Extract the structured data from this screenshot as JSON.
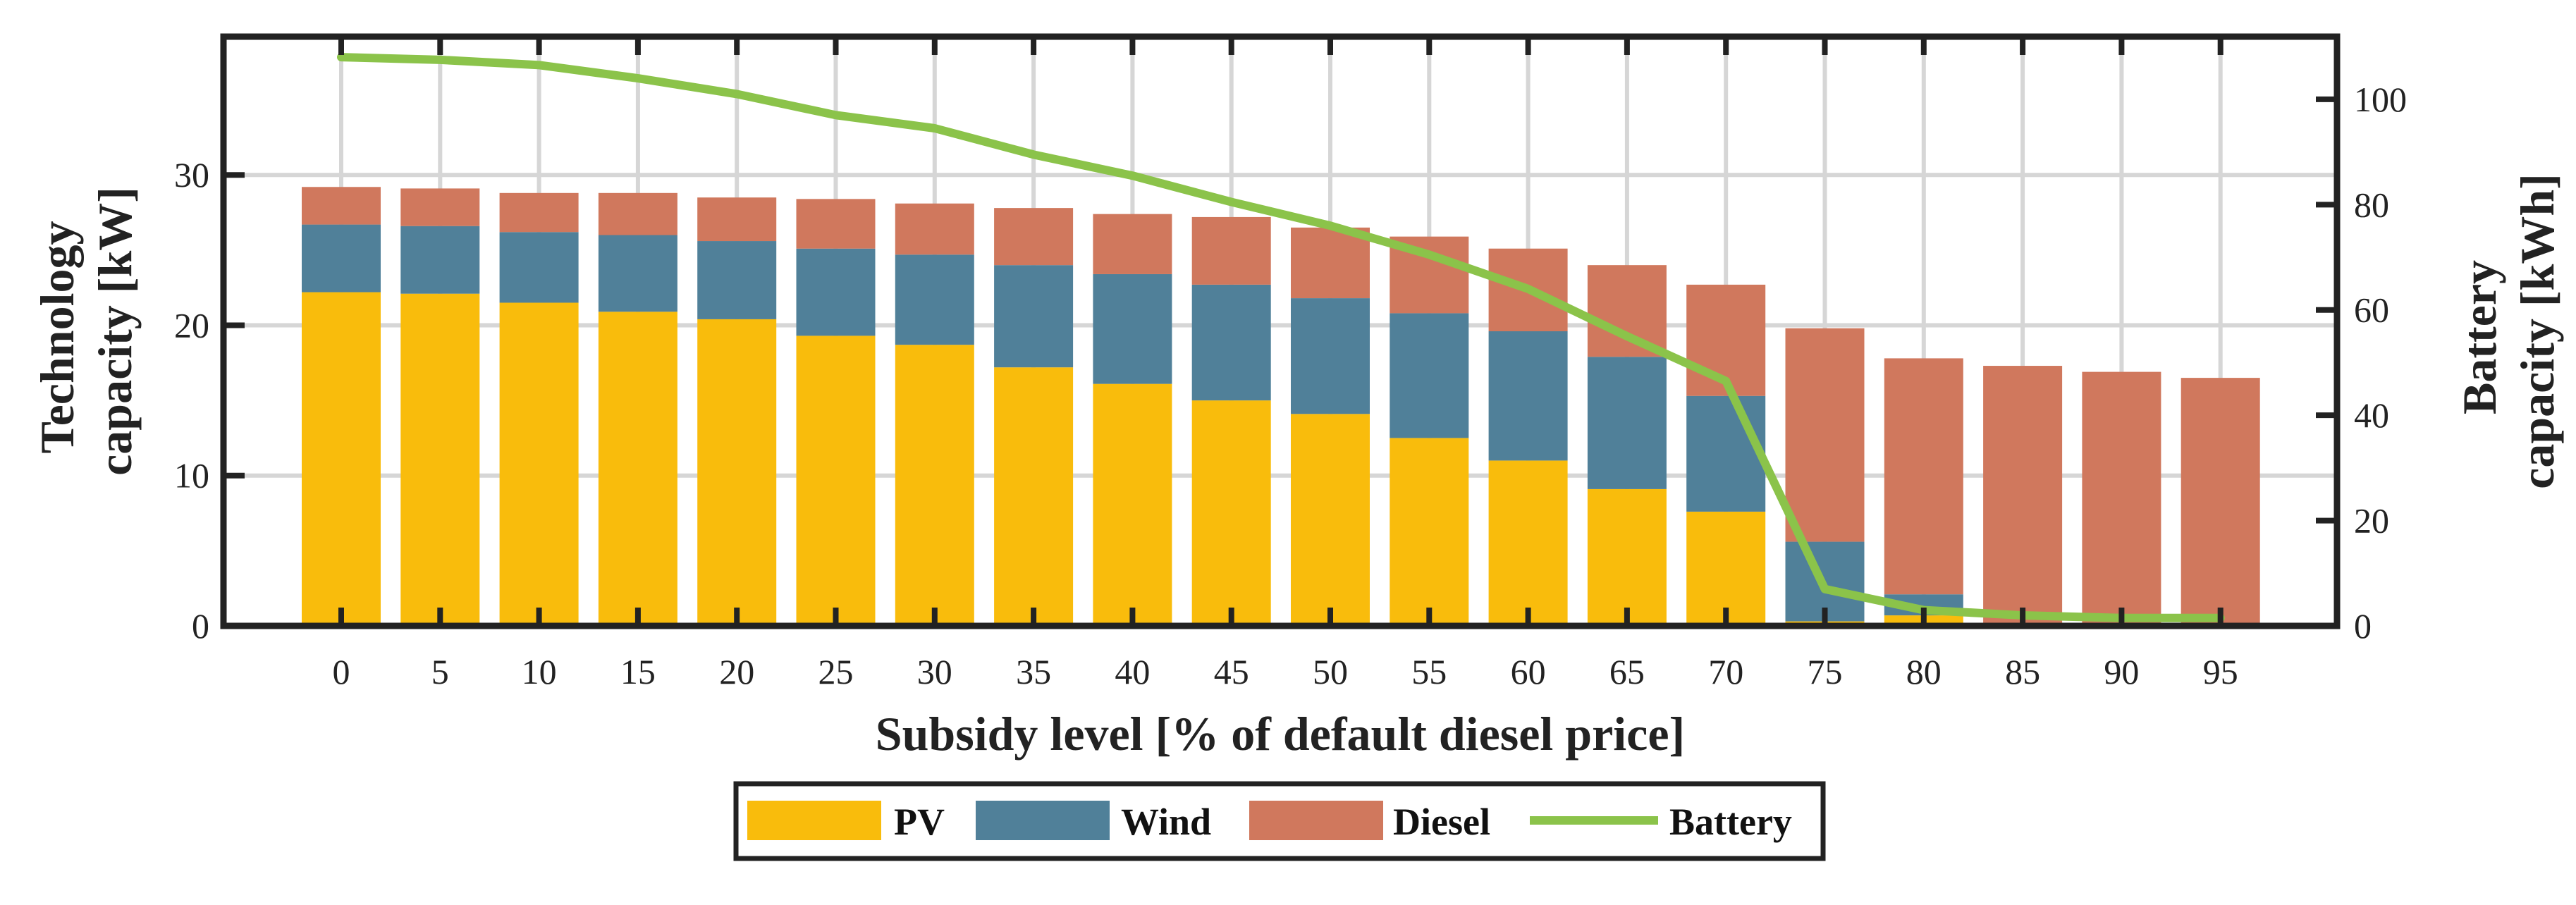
{
  "chart_data": {
    "type": "bar",
    "stacked": true,
    "categories": [
      "0",
      "5",
      "10",
      "15",
      "20",
      "25",
      "30",
      "35",
      "40",
      "45",
      "50",
      "55",
      "60",
      "65",
      "70",
      "75",
      "80",
      "85",
      "90",
      "95"
    ],
    "series": [
      {
        "name": "PV",
        "axis": "left",
        "color": "#F9BC0C",
        "values": [
          22.2,
          22.1,
          21.5,
          20.9,
          20.4,
          19.3,
          18.7,
          17.2,
          16.1,
          15.0,
          14.1,
          12.5,
          11.0,
          9.1,
          7.6,
          0.3,
          0.7,
          0,
          0,
          0
        ]
      },
      {
        "name": "Wind",
        "axis": "left",
        "color": "#508099",
        "values": [
          4.5,
          4.5,
          4.7,
          5.1,
          5.2,
          5.8,
          6.0,
          6.8,
          7.3,
          7.7,
          7.7,
          8.3,
          8.6,
          8.8,
          7.7,
          5.3,
          1.4,
          0,
          0,
          0
        ]
      },
      {
        "name": "Diesel",
        "axis": "left",
        "color": "#D0785D",
        "values": [
          2.5,
          2.5,
          2.6,
          2.8,
          2.9,
          3.3,
          3.4,
          3.8,
          4.0,
          4.5,
          4.7,
          5.1,
          5.5,
          6.1,
          7.4,
          14.2,
          15.7,
          17.3,
          16.9,
          16.5
        ]
      },
      {
        "name": "Battery",
        "axis": "right",
        "type": "line",
        "color": "#8BC34A",
        "values": [
          108,
          107.5,
          106.5,
          104,
          101,
          97,
          94.5,
          89.5,
          85.5,
          80.5,
          76,
          70.5,
          64,
          55,
          46.5,
          7,
          3,
          2,
          1.5,
          1.5
        ]
      }
    ],
    "xlabel": "Subsidy level [% of default diesel price]",
    "ylabel_left": [
      "Technology",
      "capacity [kW]"
    ],
    "ylabel_right": [
      "Battery",
      "capacity [kWh]"
    ],
    "ylim_left": [
      0,
      39.2
    ],
    "ylim_right": [
      0,
      111.9
    ],
    "yticks_left": [
      "0",
      "10",
      "20",
      "30"
    ],
    "yticks_right": [
      "0",
      "20",
      "40",
      "60",
      "80",
      "100"
    ],
    "legend_position": "bottom-center",
    "grid": true
  }
}
